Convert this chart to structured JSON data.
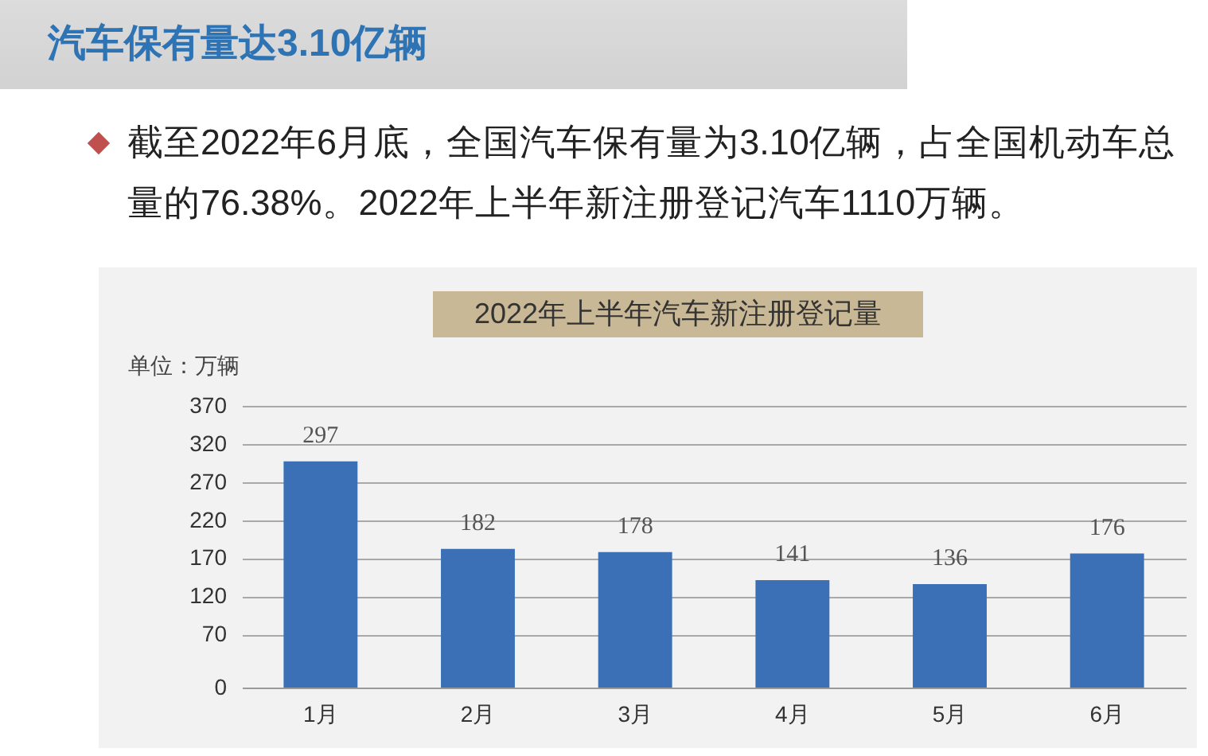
{
  "chart_data": {
    "type": "bar",
    "title": "2022年上半年汽车新注册登记量",
    "ylabel": "单位：万辆",
    "annotations": [
      "汽车保有量达3.10亿辆",
      "截至2022年6月底，全国汽车保有量为3.10亿辆，占全国机动车总量的76.38%。2022年上半年新注册登记汽车1110万辆。"
    ],
    "categories": [
      "1月",
      "2月",
      "3月",
      "4月",
      "5月",
      "6月"
    ],
    "values": [
      297,
      182,
      178,
      141,
      136,
      176
    ],
    "color": "#3b6fb6",
    "ylim": [
      0,
      370
    ],
    "yticks": [
      0,
      70,
      120,
      170,
      220,
      270,
      320,
      370
    ],
    "grid": "y",
    "data_labels": true
  }
}
